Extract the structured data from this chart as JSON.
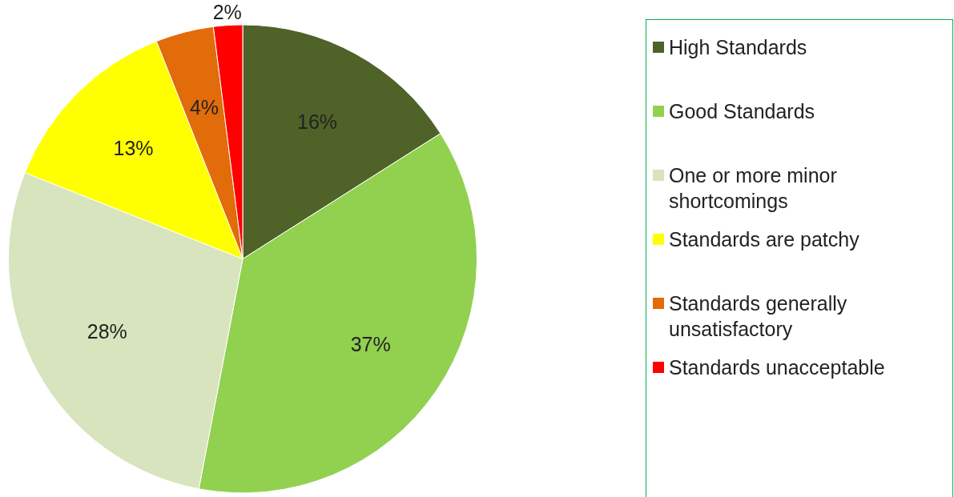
{
  "chart_data": {
    "type": "pie",
    "categories": [
      "High Standards",
      "Good Standards",
      "One or more minor shortcomings",
      "Standards are patchy",
      "Standards generally unsatisfactory",
      "Standards unacceptable"
    ],
    "values": [
      16,
      37,
      28,
      13,
      4,
      2
    ],
    "colors": [
      "#4f6228",
      "#92d050",
      "#d7e4bd",
      "#ffff00",
      "#e26b0a",
      "#ff0000"
    ],
    "value_labels": [
      "16%",
      "37%",
      "28%",
      "13%",
      "4%",
      "2%"
    ],
    "legend": "right"
  }
}
